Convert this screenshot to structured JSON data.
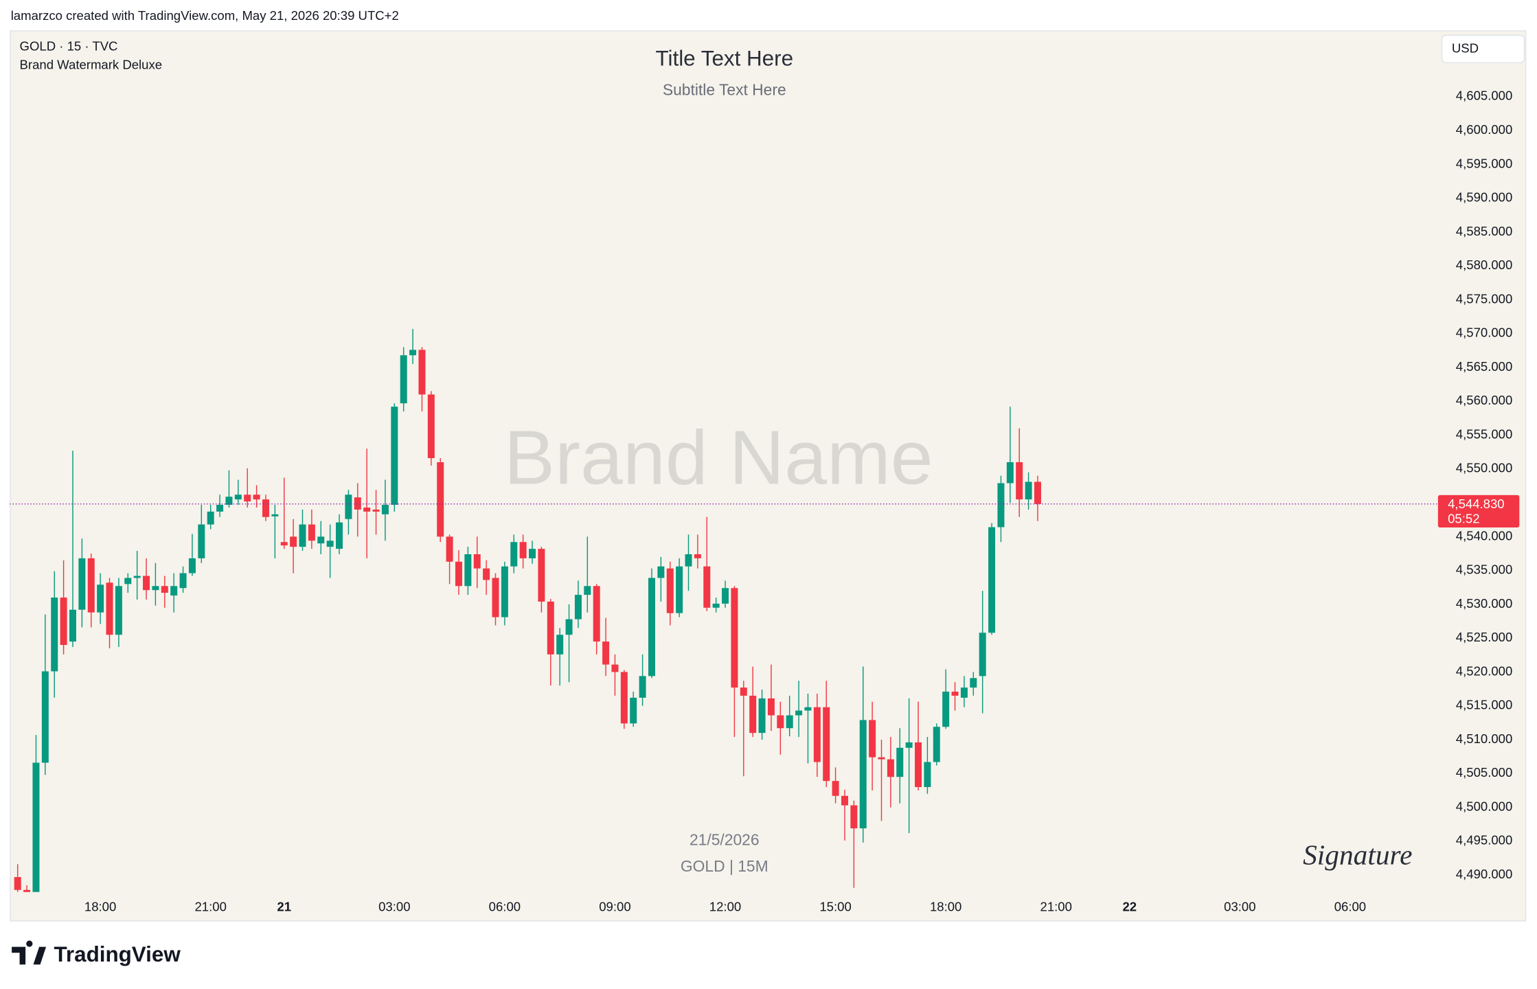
{
  "page": {
    "credit": "lamarzco created with TradingView.com, May 21, 2026 20:39 UTC+2",
    "footer_brand": "TradingView"
  },
  "chart_data": {
    "type": "candlestick",
    "symbol": "GOLD · 15 · TVC",
    "indicator": "Brand Watermark Deluxe",
    "title": "Title Text Here",
    "subtitle": "Subtitle Text Here",
    "watermark": "Brand Name",
    "date_caption": "21/5/2026",
    "symbol_caption": "GOLD | 15M",
    "signature": "Signature",
    "currency": "USD",
    "up_color": "#089981",
    "down_color": "#f23645",
    "price_line_color": "#9c27b0",
    "x": [
      15.75,
      16,
      16.25,
      16.5,
      16.75,
      17,
      17.25,
      17.5,
      17.75,
      18,
      18.25,
      18.5,
      18.75,
      19,
      19.25,
      19.5,
      19.75,
      20,
      20.25,
      20.5,
      20.75,
      21,
      21.25,
      21.5,
      21.75,
      22,
      22.25,
      22.5,
      22.75,
      24,
      24.25,
      24.5,
      24.75,
      25,
      25.25,
      25.5,
      25.75,
      26,
      26.25,
      26.5,
      26.75,
      27,
      27.25,
      27.5,
      27.75,
      28,
      28.25,
      28.5,
      28.75,
      29,
      29.25,
      29.5,
      29.75,
      30,
      30.25,
      30.5,
      30.75,
      31,
      31.25,
      31.5,
      31.75,
      32,
      32.25,
      32.5,
      32.75,
      33,
      33.25,
      33.5,
      33.75,
      34,
      34.25,
      34.5,
      34.75,
      35,
      35.25,
      35.5,
      35.75,
      36,
      36.25,
      36.5,
      36.75,
      37,
      37.25,
      37.5,
      37.75,
      38,
      38.25,
      38.5,
      38.75,
      39,
      39.25,
      39.5,
      39.75,
      40,
      40.25,
      40.5,
      40.75,
      41,
      41.25,
      41.5,
      41.75,
      42,
      42.25,
      42.5,
      42.75,
      43,
      43.25,
      43.5,
      43.75,
      44,
      44.25,
      44.5
    ],
    "open": [
      4489.7,
      4487.8,
      4484.0,
      4506.6,
      4520.1,
      4531.0,
      4524.5,
      4529.2,
      4536.8,
      4528.8,
      4533.2,
      4525.5,
      4533.0,
      4533.9,
      4534.2,
      4532.1,
      4532.7,
      4531.3,
      4532.4,
      4534.6,
      4536.8,
      4541.8,
      4543.7,
      4544.7,
      4545.5,
      4546.2,
      4546.2,
      4545.5,
      4543.0,
      4539.2,
      4540.0,
      4538.5,
      4541.8,
      4539.0,
      4538.5,
      4538.2,
      4542.6,
      4545.8,
      4544.3,
      4544.0,
      4543.3,
      4544.7,
      4559.7,
      4566.8,
      4567.6,
      4561.0,
      4551.0,
      4540.0,
      4536.3,
      4532.7,
      4537.4,
      4535.3,
      4533.9,
      4528.1,
      4535.6,
      4539.2,
      4536.8,
      4538.2,
      4530.4,
      4522.6,
      4525.5,
      4527.8,
      4531.4,
      4532.7,
      4524.5,
      4521.1,
      4520.0,
      4512.4,
      4516.2,
      4519.4,
      4533.9,
      4535.3,
      4528.7,
      4535.6,
      4537.4,
      4535.6,
      4529.5,
      4530.1,
      4532.4,
      4517.7,
      4516.5,
      4511.0,
      4516.1,
      4513.6,
      4511.7,
      4513.6,
      4514.3,
      4514.8,
      4514.8,
      4503.9,
      4501.7,
      4500.3,
      4496.9,
      4512.9,
      4507.4,
      4507.1,
      4504.5,
      4508.8,
      4509.6,
      4503.0,
      4506.7,
      4511.9,
      4517.1,
      4516.2,
      4517.7,
      4519.4,
      4525.8,
      4541.4,
      4547.9,
      4551.0,
      4545.5,
      4548.1
    ],
    "high": [
      4491.6,
      4488.5,
      4510.7,
      4528.5,
      4534.9,
      4536.5,
      4552.7,
      4539.7,
      4537.5,
      4534.6,
      4533.9,
      4533.9,
      4534.6,
      4537.9,
      4536.8,
      4536.1,
      4534.2,
      4534.6,
      4535.6,
      4540.4,
      4544.7,
      4544.7,
      4546.2,
      4549.8,
      4548.4,
      4550.1,
      4547.6,
      4546.2,
      4544.7,
      4548.7,
      4542.6,
      4544.0,
      4544.0,
      4542.3,
      4541.8,
      4543.3,
      4546.9,
      4547.9,
      4553.0,
      4546.9,
      4548.4,
      4559.7,
      4568.0,
      4570.7,
      4568.0,
      4561.5,
      4551.6,
      4540.3,
      4538.0,
      4538.5,
      4540.0,
      4536.5,
      4534.6,
      4536.3,
      4540.3,
      4540.3,
      4539.4,
      4538.5,
      4530.8,
      4526.5,
      4530.0,
      4533.5,
      4540.0,
      4533.0,
      4528.0,
      4522.6,
      4520.3,
      4517.1,
      4522.6,
      4535.3,
      4537.0,
      4536.3,
      4536.8,
      4540.3,
      4540.3,
      4542.9,
      4531.0,
      4533.5,
      4532.7,
      4518.7,
      4520.8,
      4517.4,
      4521.1,
      4515.6,
      4516.5,
      4518.7,
      4516.8,
      4516.8,
      4518.7,
      4505.9,
      4502.6,
      4501.0,
      4520.8,
      4515.6,
      4510.0,
      4510.4,
      4511.7,
      4516.1,
      4515.6,
      4510.4,
      4512.4,
      4520.4,
      4518.5,
      4519.4,
      4520.0,
      4532.0,
      4542.0,
      4549.0,
      4559.2,
      4556.0,
      4549.5,
      4549.0
    ],
    "low": [
      4487.5,
      4482.0,
      4483.5,
      4504.8,
      4516.2,
      4522.6,
      4523.7,
      4526.6,
      4526.6,
      4527.1,
      4523.5,
      4523.7,
      4531.7,
      4530.7,
      4530.7,
      4529.8,
      4529.5,
      4528.8,
      4531.7,
      4534.2,
      4536.1,
      4541.1,
      4542.9,
      4544.3,
      4544.7,
      4544.3,
      4544.3,
      4542.3,
      4536.8,
      4538.2,
      4534.6,
      4537.9,
      4538.2,
      4537.4,
      4533.9,
      4537.4,
      4540.3,
      4540.0,
      4536.8,
      4540.3,
      4539.4,
      4543.7,
      4558.5,
      4565.5,
      4558.5,
      4550.5,
      4539.2,
      4533.0,
      4531.4,
      4531.4,
      4532.4,
      4531.4,
      4526.9,
      4526.9,
      4534.6,
      4535.3,
      4536.0,
      4528.8,
      4518.0,
      4518.0,
      4518.5,
      4526.5,
      4528.8,
      4522.6,
      4519.4,
      4516.5,
      4511.6,
      4511.9,
      4515.0,
      4519.1,
      4530.4,
      4526.9,
      4528.1,
      4532.0,
      4535.3,
      4529.0,
      4528.8,
      4529.5,
      4510.4,
      4504.6,
      4510.4,
      4510.0,
      4511.3,
      4507.8,
      4510.5,
      4510.4,
      4506.5,
      4504.5,
      4503.0,
      4500.6,
      4495.1,
      4488.1,
      4494.8,
      4502.5,
      4498.0,
      4500.0,
      4500.6,
      4496.2,
      4502.5,
      4502.0,
      4506.2,
      4511.6,
      4514.3,
      4514.8,
      4516.5,
      4513.9,
      4525.5,
      4539.2,
      4545.0,
      4542.9,
      4544.0,
      4542.3
    ],
    "close": [
      4487.8,
      4484.0,
      4506.6,
      4520.1,
      4531.0,
      4524.0,
      4529.2,
      4536.8,
      4528.8,
      4532.9,
      4525.5,
      4532.7,
      4533.9,
      4534.2,
      4532.1,
      4532.7,
      4531.7,
      4532.7,
      4534.6,
      4536.8,
      4541.8,
      4543.7,
      4544.7,
      4545.9,
      4546.2,
      4545.2,
      4545.5,
      4542.9,
      4543.3,
      4538.7,
      4538.5,
      4541.8,
      4539.4,
      4540.0,
      4539.4,
      4542.1,
      4546.2,
      4544.0,
      4543.7,
      4543.7,
      4544.7,
      4559.2,
      4566.8,
      4567.6,
      4561.0,
      4551.6,
      4540.0,
      4536.3,
      4532.7,
      4537.4,
      4535.3,
      4533.6,
      4528.1,
      4535.6,
      4539.2,
      4536.8,
      4538.2,
      4530.4,
      4522.6,
      4525.5,
      4527.8,
      4531.4,
      4532.7,
      4524.5,
      4521.1,
      4520.0,
      4512.4,
      4516.2,
      4519.4,
      4533.9,
      4535.6,
      4528.7,
      4535.6,
      4537.4,
      4536.8,
      4529.5,
      4530.1,
      4532.4,
      4517.7,
      4516.5,
      4511.0,
      4516.1,
      4513.6,
      4511.7,
      4513.6,
      4514.3,
      4514.8,
      4506.7,
      4503.9,
      4501.7,
      4500.3,
      4496.9,
      4512.9,
      4507.4,
      4507.1,
      4504.5,
      4508.8,
      4509.6,
      4503.0,
      4506.7,
      4511.9,
      4517.1,
      4516.5,
      4517.7,
      4519.1,
      4525.8,
      4541.4,
      4547.9,
      4551.0,
      4545.5,
      4548.1,
      4544.83
    ],
    "last_price": {
      "value": 4544.83,
      "label": "4,544.830"
    },
    "countdown": "05:52",
    "ylim": [
      4487.5,
      4614.8
    ],
    "yticks": [
      {
        "value": 4490,
        "label": "4,490.000"
      },
      {
        "value": 4495,
        "label": "4,495.000"
      },
      {
        "value": 4500,
        "label": "4,500.000"
      },
      {
        "value": 4505,
        "label": "4,505.000"
      },
      {
        "value": 4510,
        "label": "4,510.000"
      },
      {
        "value": 4515,
        "label": "4,515.000"
      },
      {
        "value": 4520,
        "label": "4,520.000"
      },
      {
        "value": 4525,
        "label": "4,525.000"
      },
      {
        "value": 4530,
        "label": "4,530.000"
      },
      {
        "value": 4535,
        "label": "4,535.000"
      },
      {
        "value": 4540,
        "label": "4,540.000"
      },
      {
        "value": 4545,
        "label": "4,545.000"
      },
      {
        "value": 4550,
        "label": "4,550.000"
      },
      {
        "value": 4555,
        "label": "4,555.000"
      },
      {
        "value": 4560,
        "label": "4,560.000"
      },
      {
        "value": 4565,
        "label": "4,565.000"
      },
      {
        "value": 4570,
        "label": "4,570.000"
      },
      {
        "value": 4575,
        "label": "4,575.000"
      },
      {
        "value": 4580,
        "label": "4,580.000"
      },
      {
        "value": 4585,
        "label": "4,585.000"
      },
      {
        "value": 4590,
        "label": "4,590.000"
      },
      {
        "value": 4595,
        "label": "4,595.000"
      },
      {
        "value": 4600,
        "label": "4,600.000"
      },
      {
        "value": 4605,
        "label": "4,605.000"
      }
    ],
    "xticks": [
      {
        "value": 18,
        "label": "18:00"
      },
      {
        "value": 21,
        "label": "21:00"
      },
      {
        "value": 24,
        "label": "21"
      },
      {
        "value": 27,
        "label": "03:00"
      },
      {
        "value": 30,
        "label": "06:00"
      },
      {
        "value": 33,
        "label": "09:00"
      },
      {
        "value": 36,
        "label": "12:00"
      },
      {
        "value": 39,
        "label": "15:00"
      },
      {
        "value": 42,
        "label": "18:00"
      },
      {
        "value": 45,
        "label": "21:00"
      },
      {
        "value": 48,
        "label": "22"
      },
      {
        "value": 51,
        "label": "03:00"
      },
      {
        "value": 54,
        "label": "06:00"
      }
    ]
  }
}
